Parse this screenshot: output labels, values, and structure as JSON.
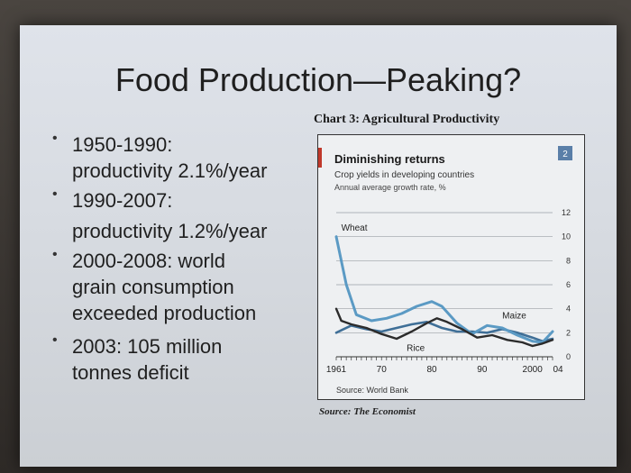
{
  "slide": {
    "title": "Food Production—Peaking?",
    "bullets": [
      {
        "lines": [
          "1950-1990:",
          "productivity 2.1%/year"
        ]
      },
      {
        "lines": [
          "1990-2007:",
          "productivity 1.2%/year"
        ]
      },
      {
        "lines": [
          "2000-2008: world",
          "grain consumption",
          "exceeded production"
        ]
      },
      {
        "lines": [
          "2003: 105 million",
          "tonnes deficit"
        ]
      }
    ],
    "chart_caption": "Chart 3: Agricultural Productivity",
    "source_note": "Source: The Economist",
    "colors": {
      "wheat": "#5b9ac4",
      "maize": "#3f6f97",
      "rice": "#2b2b2b",
      "accent": "#c0392b",
      "badge": "#5a7fa8"
    }
  },
  "chart_data": {
    "type": "line",
    "title": "Diminishing returns",
    "subtitle": "Crop yields in developing countries",
    "ylabel": "Annual average growth rate, %",
    "badge": "2",
    "source": "Source: World Bank",
    "x_tick_labels": [
      "1961",
      "70",
      "80",
      "90",
      "2000",
      "04"
    ],
    "y_ticks": [
      "0",
      "2",
      "4",
      "6",
      "8",
      "10",
      "12"
    ],
    "xlim": [
      1961,
      2004
    ],
    "ylim": [
      0,
      12
    ],
    "series": [
      {
        "name": "Wheat",
        "x": [
          1961,
          1963,
          1965,
          1968,
          1971,
          1974,
          1977,
          1980,
          1982,
          1985,
          1988,
          1991,
          1994,
          1997,
          2000,
          2002,
          2004
        ],
        "y": [
          10,
          6,
          3.5,
          3,
          3.2,
          3.6,
          4.2,
          4.6,
          4.2,
          2.8,
          1.9,
          2.6,
          2.4,
          1.8,
          1.3,
          1.2,
          2.1
        ]
      },
      {
        "name": "Maize",
        "x": [
          1961,
          1964,
          1967,
          1970,
          1973,
          1976,
          1979,
          1982,
          1985,
          1988,
          1991,
          1994,
          1997,
          2000,
          2002,
          2004
        ],
        "y": [
          2,
          2.6,
          2.3,
          2.1,
          2.4,
          2.7,
          2.9,
          2.4,
          2.1,
          2.1,
          2.0,
          2.3,
          2.0,
          1.6,
          1.3,
          1.5
        ]
      },
      {
        "name": "Rice",
        "x": [
          1961,
          1962,
          1964,
          1967,
          1970,
          1973,
          1976,
          1979,
          1981,
          1983,
          1986,
          1989,
          1992,
          1995,
          1998,
          2000,
          2002,
          2004
        ],
        "y": [
          4,
          3,
          2.7,
          2.4,
          1.9,
          1.5,
          2.1,
          2.8,
          3.2,
          2.9,
          2.3,
          1.6,
          1.8,
          1.4,
          1.2,
          0.9,
          1.1,
          1.4
        ]
      }
    ]
  }
}
